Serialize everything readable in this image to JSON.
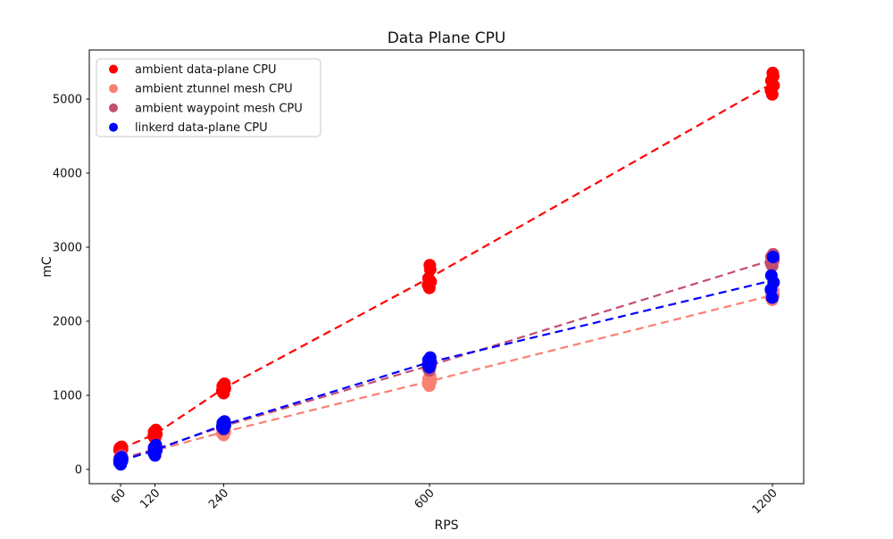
{
  "chart_data": {
    "type": "scatter",
    "title": "Data Plane CPU",
    "xlabel": "RPS",
    "ylabel": "mC",
    "x_ticks": [
      60,
      120,
      240,
      600,
      1200
    ],
    "y_ticks": [
      0,
      1000,
      2000,
      3000,
      4000,
      5000
    ],
    "x_range": [
      5,
      1255
    ],
    "y_range": [
      -190,
      5660
    ],
    "grid": false,
    "legend_position": "upper left",
    "marker": "circle",
    "trend_style": "dashed",
    "series": [
      {
        "name": "ambient data-plane CPU",
        "color": "#ff0000",
        "points": [
          {
            "rps": 60,
            "values": [
              252,
              265,
              278,
              292,
              308
            ]
          },
          {
            "rps": 120,
            "values": [
              420,
              450,
              478,
              508,
              535
            ]
          },
          {
            "rps": 240,
            "values": [
              1030,
              1065,
              1095,
              1128,
              1158
            ]
          },
          {
            "rps": 600,
            "values": [
              2450,
              2490,
              2535,
              2580,
              2700,
              2758
            ]
          },
          {
            "rps": 1200,
            "values": [
              5060,
              5115,
              5180,
              5245,
              5305,
              5350
            ]
          }
        ]
      },
      {
        "name": "ambient ztunnel mesh CPU",
        "color": "#fa8072",
        "points": [
          {
            "rps": 60,
            "values": [
              112,
              130,
              148,
              166,
              185
            ]
          },
          {
            "rps": 120,
            "values": [
              210,
              235,
              258,
              282,
              305
            ]
          },
          {
            "rps": 240,
            "values": [
              465,
              488,
              508,
              528,
              548
            ]
          },
          {
            "rps": 600,
            "values": [
              1130,
              1162,
              1192,
              1222,
              1252
            ]
          },
          {
            "rps": 1200,
            "values": [
              2290,
              2322,
              2352,
              2382,
              2412
            ]
          }
        ]
      },
      {
        "name": "ambient waypoint mesh CPU",
        "color": "#c44e6e",
        "points": [
          {
            "rps": 60,
            "values": [
              105,
              124,
              143,
              162,
              182
            ]
          },
          {
            "rps": 120,
            "values": [
              228,
              252,
              276,
              300,
              325
            ]
          },
          {
            "rps": 240,
            "values": [
              540,
              563,
              586,
              610,
              635
            ]
          },
          {
            "rps": 600,
            "values": [
              1338,
              1372,
              1404,
              1436,
              1465
            ]
          },
          {
            "rps": 1200,
            "values": [
              2748,
              2788,
              2828,
              2868,
              2905
            ]
          }
        ]
      },
      {
        "name": "linkerd data-plane CPU",
        "color": "#0000ff",
        "points": [
          {
            "rps": 60,
            "values": [
              70,
              95,
              118,
              142,
              168
            ]
          },
          {
            "rps": 120,
            "values": [
              190,
              228,
              262,
              298,
              330
            ]
          },
          {
            "rps": 240,
            "values": [
              552,
              578,
              602,
              628,
              650
            ]
          },
          {
            "rps": 600,
            "values": [
              1378,
              1415,
              1448,
              1480,
              1512
            ]
          },
          {
            "rps": 1200,
            "values": [
              2318,
              2428,
              2525,
              2618,
              2868
            ]
          }
        ]
      }
    ]
  }
}
